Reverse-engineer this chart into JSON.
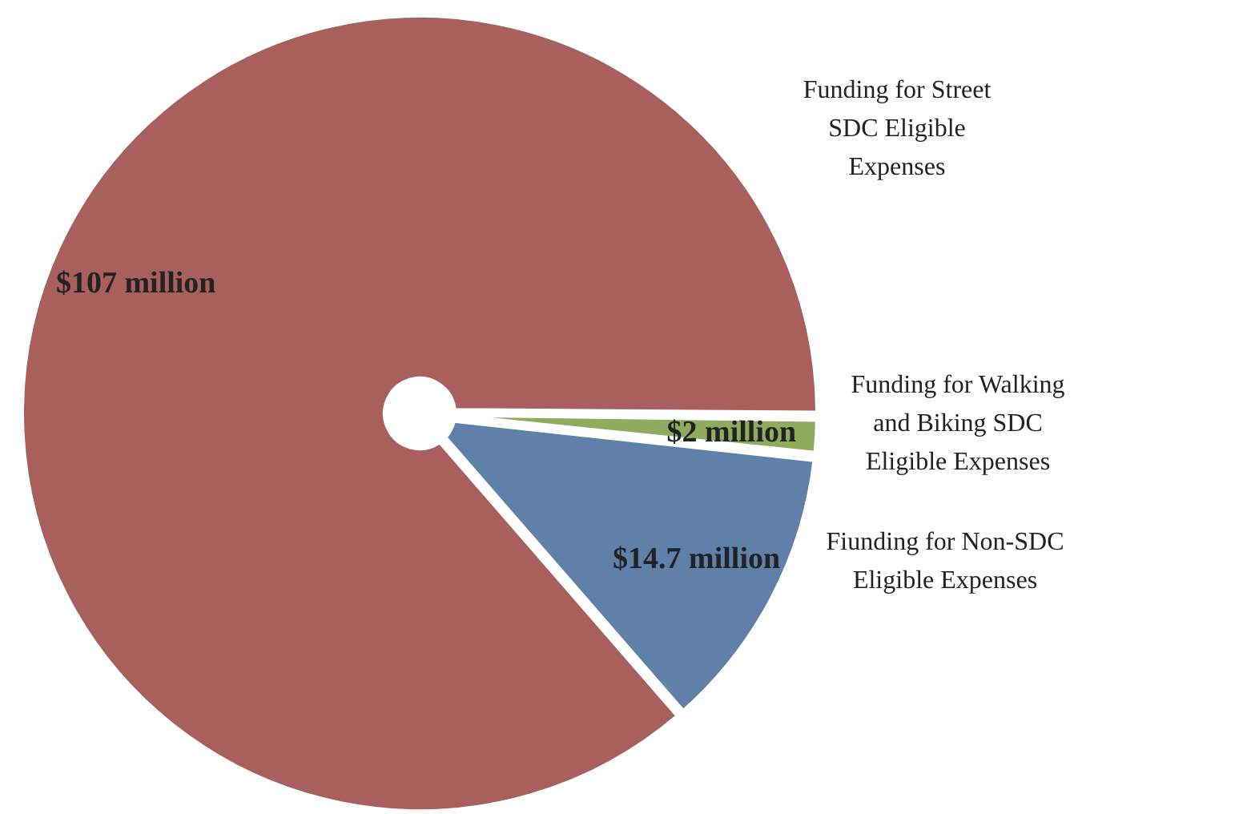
{
  "chart_data": {
    "type": "pie",
    "categories": [
      "Funding for Street SDC Eligible Expenses",
      "Funding for  Walking and Biking SDC Eligible Expenses",
      "Fiunding for Non-SDC Eligible Expenses"
    ],
    "values": [
      107,
      2,
      14.7
    ],
    "colors": [
      "#a9605c",
      "#8fab5e",
      "#5f80a9"
    ],
    "value_labels": [
      "$107 million",
      "$2 million",
      "$14.7 million"
    ]
  }
}
